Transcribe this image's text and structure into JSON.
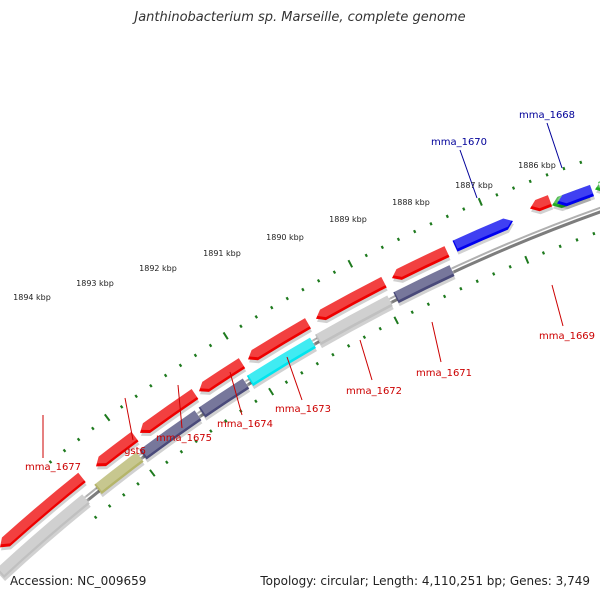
{
  "title": "Janthinobacterium sp. Marseille, complete genome",
  "accession": "Accession: NC_009659",
  "summary": "Topology: circular; Length: 4,110,251 bp; Genes: 3,749",
  "colors": {
    "backbone": "#7d7d7d",
    "tick": "#1e7a1e",
    "label_red": "#cc0000",
    "label_blue": "#000099",
    "gene_red": "#ee0000",
    "gene_blue": "#0000ee",
    "gene_green": "#22aa22",
    "gene_grey": "#c0c0c0",
    "gene_navy": "#4a4a7a",
    "gene_cyan": "#00e5ee",
    "gene_olive": "#b5b56a"
  },
  "scale_labels": [
    "1894 kbp",
    "1893 kbp",
    "1892 kbp",
    "1891 kbp",
    "1890 kbp",
    "1889 kbp",
    "1888 kbp",
    "1887 kbp",
    "1886 kbp"
  ],
  "gene_labels": [
    {
      "text": "mma_1677",
      "color": "red"
    },
    {
      "text": "gst6",
      "color": "red"
    },
    {
      "text": "mma_1675",
      "color": "red"
    },
    {
      "text": "mma_1674",
      "color": "red"
    },
    {
      "text": "mma_1673",
      "color": "red"
    },
    {
      "text": "mma_1672",
      "color": "red"
    },
    {
      "text": "mma_1671",
      "color": "red"
    },
    {
      "text": "mma_1669",
      "color": "red"
    },
    {
      "text": "mma_1670",
      "color": "blue"
    },
    {
      "text": "mma_1668",
      "color": "blue"
    }
  ],
  "genes": [
    {
      "track": "upper",
      "color": "blue",
      "strand": "forward",
      "label": "mma_1670"
    },
    {
      "track": "upper",
      "color": "green",
      "strand": "reverse",
      "label": "mma_1668"
    },
    {
      "track": "upper",
      "color": "green",
      "strand": "reverse"
    },
    {
      "track": "upper",
      "color": "blue",
      "strand": "reverse"
    },
    {
      "track": "inner",
      "color": "red",
      "strand": "reverse",
      "label": "mma_1669"
    },
    {
      "track": "lower",
      "color": "red",
      "strand": "reverse",
      "label": "mma_1677"
    },
    {
      "track": "lower",
      "color": "red",
      "strand": "reverse"
    },
    {
      "track": "lower",
      "color": "red",
      "strand": "reverse"
    },
    {
      "track": "lower",
      "color": "red",
      "strand": "reverse"
    },
    {
      "track": "lower",
      "color": "red",
      "strand": "reverse"
    },
    {
      "track": "lower",
      "color": "red",
      "strand": "reverse"
    },
    {
      "track": "lower",
      "color": "red",
      "strand": "reverse"
    },
    {
      "track": "lower2",
      "color": "grey",
      "strand": "none"
    },
    {
      "track": "lower2",
      "color": "olive",
      "strand": "none",
      "label": "gst6"
    },
    {
      "track": "lower2",
      "color": "navy",
      "strand": "none",
      "label": "mma_1675"
    },
    {
      "track": "lower2",
      "color": "navy",
      "strand": "none",
      "label": "mma_1674"
    },
    {
      "track": "lower2",
      "color": "cyan",
      "strand": "none",
      "label": "mma_1673"
    },
    {
      "track": "lower2",
      "color": "grey",
      "strand": "none",
      "label": "mma_1672"
    },
    {
      "track": "lower2",
      "color": "navy",
      "strand": "none",
      "label": "mma_1671"
    }
  ]
}
